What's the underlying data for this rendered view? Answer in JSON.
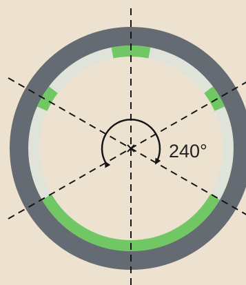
{
  "angle_label": "240°",
  "colors": {
    "background": "#ede2cf",
    "outer_ring": "#646b72",
    "inner_ring": "#dfe3da",
    "contact_segment": "#72c765",
    "disk_fill": "#ede2cf",
    "lines": "#151515"
  }
}
